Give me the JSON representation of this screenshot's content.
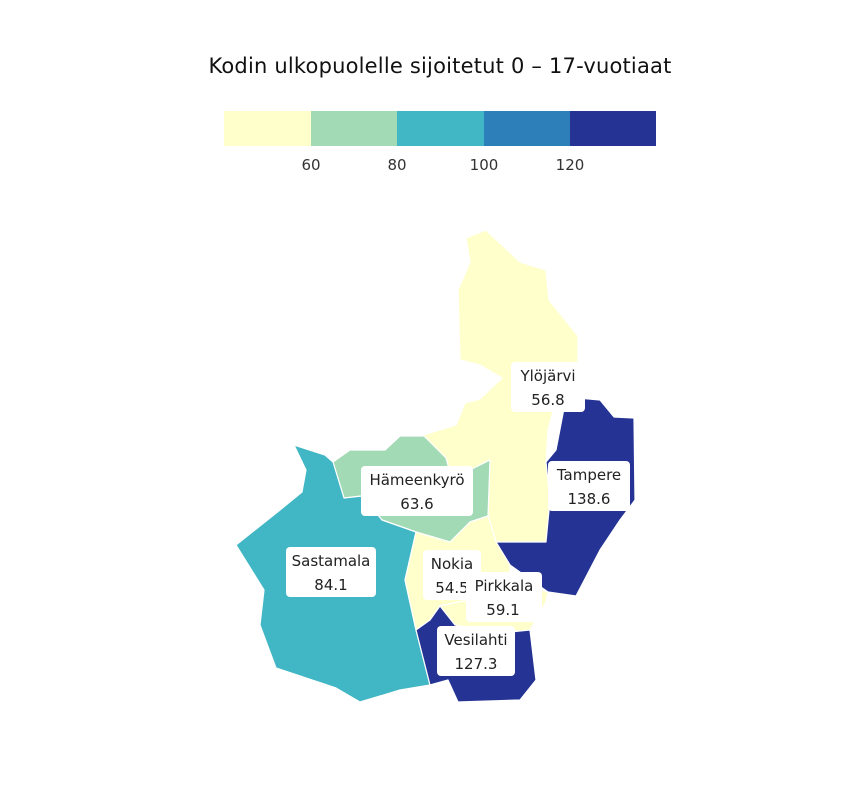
{
  "title": "Kodin ulkopuolelle sijoitetut 0 – 17-vuotiaat",
  "legend": {
    "colors": [
      "#ffffcc",
      "#a1dab4",
      "#41b6c4",
      "#2c7fb8",
      "#253494"
    ],
    "ticks": [
      "60",
      "80",
      "100",
      "120"
    ]
  },
  "regions": [
    {
      "name": "Ylöjärvi",
      "value": "56.8",
      "color": "#ffffcc"
    },
    {
      "name": "Tampere",
      "value": "138.6",
      "color": "#253494"
    },
    {
      "name": "Hämeenkyrö",
      "value": "63.6",
      "color": "#a1dab4"
    },
    {
      "name": "Sastamala",
      "value": "84.1",
      "color": "#41b6c4"
    },
    {
      "name": "Nokia",
      "value": "54.5",
      "color": "#ffffcc"
    },
    {
      "name": "Pirkkala",
      "value": "59.1",
      "color": "#ffffcc"
    },
    {
      "name": "Vesilahti",
      "value": "127.3",
      "color": "#253494"
    }
  ]
}
